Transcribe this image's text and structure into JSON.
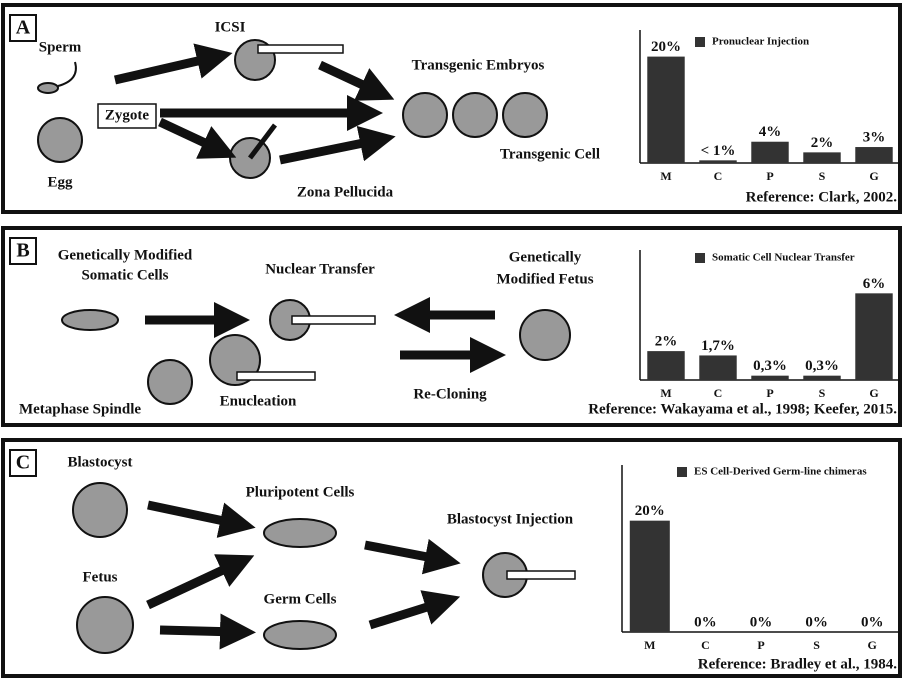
{
  "panels": [
    {
      "letter": "A",
      "labels": [
        "Sperm",
        "ICSI",
        "Zygote",
        "Egg",
        "Transgenic Embryos",
        "Transgenic Cell",
        "Zona Pellucida"
      ],
      "chart": {
        "type": "bar",
        "legend": "Pronuclear Injection",
        "categories": [
          "M",
          "C",
          "P",
          "S",
          "G"
        ],
        "values": [
          20,
          0.5,
          4,
          2,
          3
        ],
        "value_labels": [
          "20%",
          "< 1%",
          "4%",
          "2%",
          "3%"
        ],
        "ylim": [
          0,
          25
        ],
        "color": "#333333"
      },
      "reference": "Reference: Clark, 2002."
    },
    {
      "letter": "B",
      "labels": [
        "Genetically Modified",
        "Somatic Cells",
        "Nuclear Transfer",
        "Genetically",
        "Modified Fetus",
        "Metaphase Spindle",
        "Enucleation",
        "Re-Cloning"
      ],
      "chart": {
        "type": "bar",
        "legend": "Somatic Cell Nuclear Transfer",
        "categories": [
          "M",
          "C",
          "P",
          "S",
          "G"
        ],
        "values": [
          2,
          1.7,
          0.3,
          0.3,
          6
        ],
        "value_labels": [
          "2%",
          "1,7%",
          "0,3%",
          "0,3%",
          "6%"
        ],
        "ylim": [
          0,
          9
        ],
        "color": "#333333"
      },
      "reference": "Reference: Wakayama et al., 1998; Keefer, 2015."
    },
    {
      "letter": "C",
      "labels": [
        "Blastocyst",
        "Pluripotent Cells",
        "Blastocyst Injection",
        "Fetus",
        "Germ Cells"
      ],
      "chart": {
        "type": "bar",
        "legend": "ES Cell-Derived Germ-line chimeras",
        "categories": [
          "M",
          "C",
          "P",
          "S",
          "G"
        ],
        "values": [
          20,
          0,
          0,
          0,
          0
        ],
        "value_labels": [
          "20%",
          "0%",
          "0%",
          "0%",
          "0%"
        ],
        "ylim": [
          0,
          30
        ],
        "color": "#333333"
      },
      "reference": "Reference: Bradley et al., 1984."
    }
  ]
}
